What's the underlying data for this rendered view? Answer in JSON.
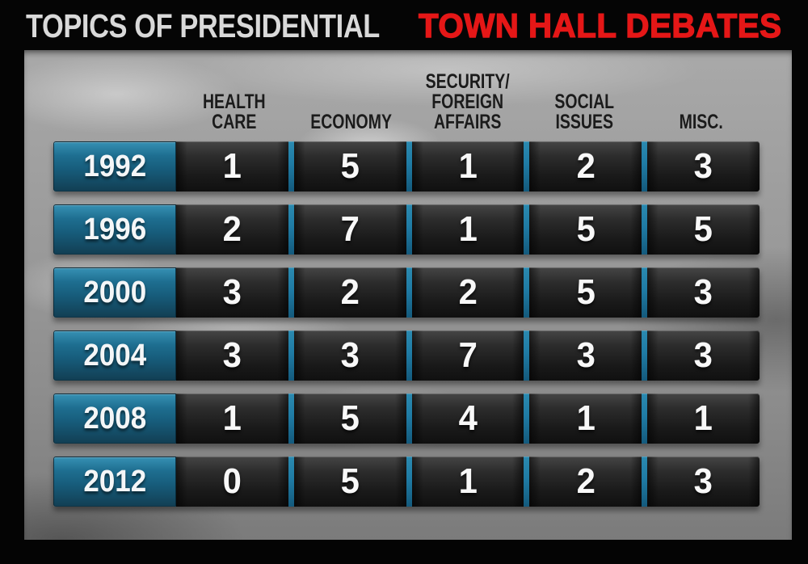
{
  "title": {
    "prefix": "TOPICS OF PRESIDENTIAL",
    "highlight": "TOWN HALL DEBATES"
  },
  "colors": {
    "title_white": "#d9d9d9",
    "title_red": "#e51717",
    "header_text": "#1b1b1b",
    "year_cell_teal_top": "#3690b3",
    "year_cell_teal_bottom": "#123f54",
    "divider_teal": "#1f7ba4",
    "data_cell_top": "#454545",
    "data_cell_bottom": "#101010",
    "value_text": "#f8f8f8"
  },
  "chart_data": {
    "type": "table",
    "title": "Topics of Presidential Town Hall Debates",
    "columns": [
      "HEALTH\nCARE",
      "ECONOMY",
      "SECURITY/\nFOREIGN\nAFFAIRS",
      "SOCIAL\nISSUES",
      "MISC."
    ],
    "row_header_label": "year",
    "rows": [
      {
        "year": "1992",
        "values": [
          1,
          5,
          1,
          2,
          3
        ]
      },
      {
        "year": "1996",
        "values": [
          2,
          7,
          1,
          5,
          5
        ]
      },
      {
        "year": "2000",
        "values": [
          3,
          2,
          2,
          5,
          3
        ]
      },
      {
        "year": "2004",
        "values": [
          3,
          3,
          7,
          3,
          3
        ]
      },
      {
        "year": "2008",
        "values": [
          1,
          5,
          4,
          1,
          1
        ]
      },
      {
        "year": "2012",
        "values": [
          0,
          5,
          1,
          2,
          3
        ]
      }
    ]
  }
}
